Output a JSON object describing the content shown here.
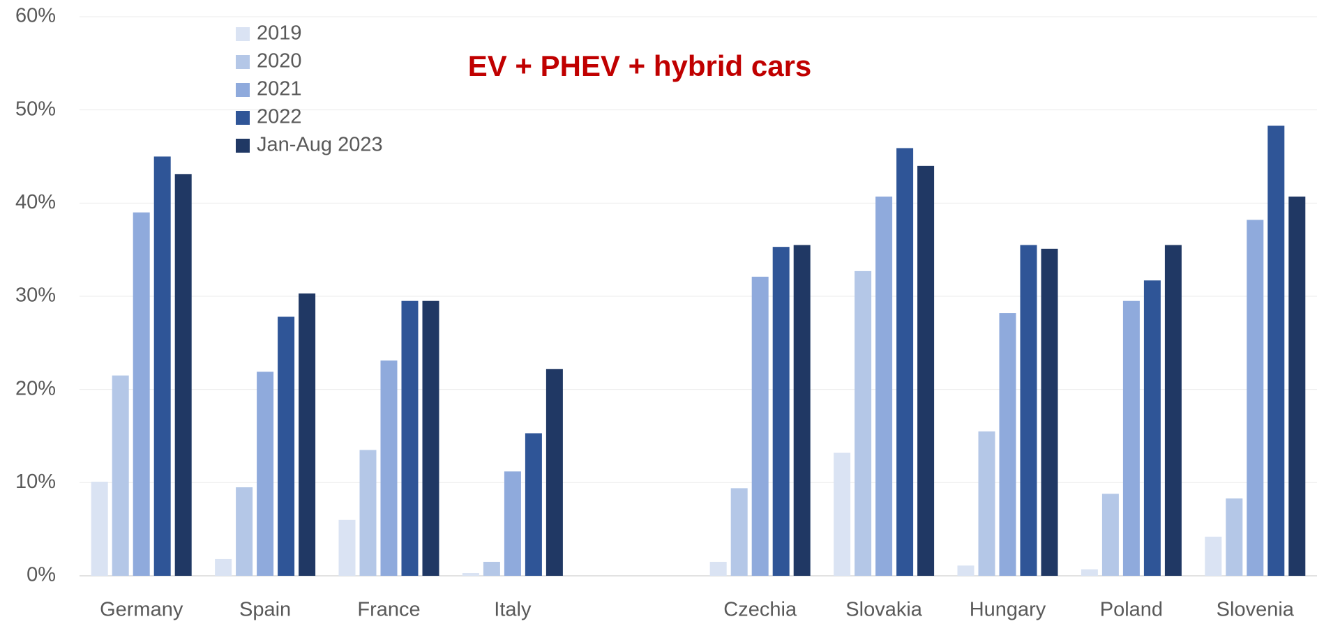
{
  "chart_data": {
    "type": "bar",
    "title": "EV + PHEV + hybrid cars",
    "categories": [
      "Germany",
      "Spain",
      "France",
      "Italy",
      null,
      "Czechia",
      "Slovakia",
      "Hungary",
      "Poland",
      "Slovenia"
    ],
    "series": [
      {
        "name": "2019",
        "color": "#dae3f3",
        "values": [
          10.1,
          1.8,
          6.0,
          0.3,
          null,
          1.5,
          13.2,
          1.1,
          0.7,
          4.2
        ]
      },
      {
        "name": "2020",
        "color": "#b4c7e7",
        "values": [
          21.5,
          9.5,
          13.5,
          1.5,
          null,
          9.4,
          32.7,
          15.5,
          8.8,
          8.3
        ]
      },
      {
        "name": "2021",
        "color": "#8faadc",
        "values": [
          39.0,
          21.9,
          23.1,
          11.2,
          null,
          32.1,
          40.7,
          28.2,
          29.5,
          38.2
        ]
      },
      {
        "name": "2022",
        "color": "#2f5597",
        "values": [
          45.0,
          27.8,
          29.5,
          15.3,
          null,
          35.3,
          45.9,
          35.5,
          31.7,
          48.3
        ]
      },
      {
        "name": "Jan-Aug 2023",
        "color": "#203864",
        "values": [
          43.1,
          30.3,
          29.5,
          22.2,
          null,
          35.5,
          44.0,
          35.1,
          35.5,
          40.7
        ]
      }
    ],
    "ylim": [
      0,
      60
    ],
    "yticks": [
      {
        "value": 0,
        "label": "0%"
      },
      {
        "value": 10,
        "label": "10%"
      },
      {
        "value": 20,
        "label": "20%"
      },
      {
        "value": 30,
        "label": "30%"
      },
      {
        "value": 40,
        "label": "40%"
      },
      {
        "value": 50,
        "label": "50%"
      },
      {
        "value": 60,
        "label": "60%"
      }
    ],
    "grid": true
  }
}
